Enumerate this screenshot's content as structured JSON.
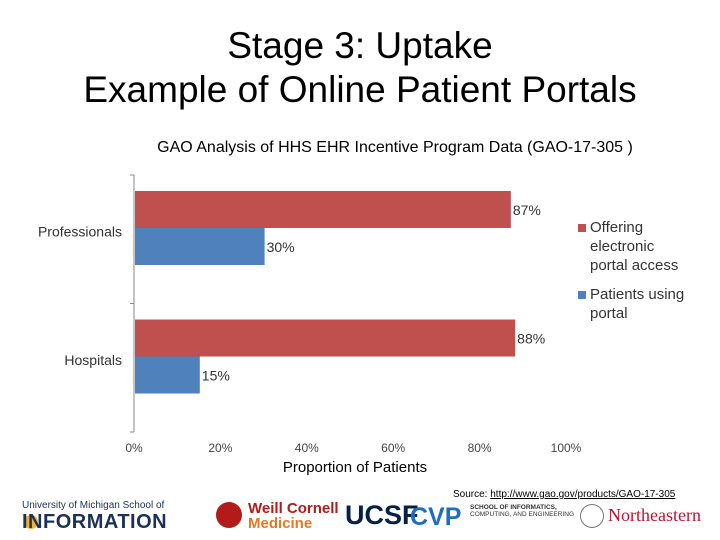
{
  "title_line1": "Stage 3: Uptake",
  "title_line2": "Example of Online Patient Portals",
  "source_prefix": "Source: ",
  "source_url": "http://www.gao.gov/products/GAO-17-305",
  "logos": {
    "umich_top": "University of Michigan School of",
    "umich_main": "INFORMATION",
    "weill_1": "Weill Cornell",
    "weill_2": "Medicine",
    "ucsf": "UCSF",
    "cvp": "CVP",
    "indiana_1": "SCHOOL OF INFORMATICS,",
    "indiana_2": "COMPUTING, AND ENGINEERING",
    "northeastern": "Northeastern"
  },
  "chart_data": {
    "type": "bar",
    "orientation": "horizontal",
    "title": "GAO Analysis of HHS EHR Incentive Program Data (GAO-17-305 )",
    "xlabel": "Proportion of Patients",
    "ylabel": "",
    "categories": [
      "Professionals",
      "Hospitals"
    ],
    "series": [
      {
        "name": "Offering electronic portal access",
        "color": "#c0504d",
        "values": [
          0.87,
          0.88
        ],
        "labels": [
          "87%",
          "88%"
        ]
      },
      {
        "name": "Patients using portal",
        "color": "#4f81bd",
        "values": [
          0.3,
          0.15
        ],
        "labels": [
          "30%",
          "15%"
        ]
      }
    ],
    "xlim": [
      0,
      1
    ],
    "xticks": [
      0,
      0.2,
      0.4,
      0.6,
      0.8,
      1.0
    ],
    "xtick_labels": [
      "0%",
      "20%",
      "40%",
      "60%",
      "80%",
      "100%"
    ],
    "grid": false,
    "legend_position": "right"
  }
}
